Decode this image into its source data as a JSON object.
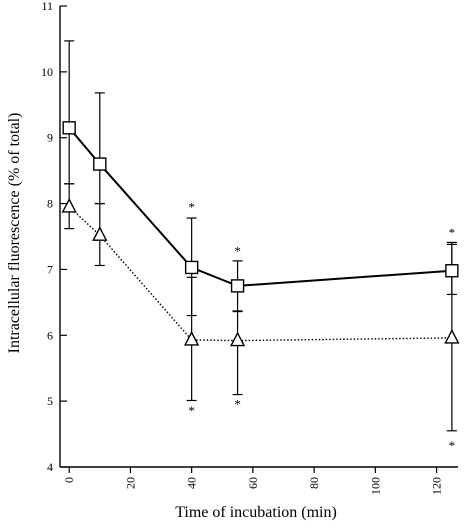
{
  "chart_data": {
    "type": "line",
    "xlabel": "Time of incubation (min)",
    "ylabel": "Intracellular fluorescence (% of total)",
    "xlim": [
      -3,
      127
    ],
    "ylim": [
      4,
      11
    ],
    "xticks": [
      0,
      20,
      40,
      60,
      80,
      100,
      120
    ],
    "yticks": [
      4,
      5,
      6,
      7,
      8,
      9,
      10,
      11
    ],
    "grid": false,
    "legend": "none",
    "series": [
      {
        "marker": "square",
        "line_style": "solid",
        "x": [
          0,
          10,
          40,
          55,
          125
        ],
        "y": [
          9.15,
          8.6,
          7.03,
          6.75,
          6.98
        ],
        "err_up": [
          1.32,
          1.08,
          0.75,
          0.38,
          0.4
        ],
        "err_down": [
          0.85,
          0.6,
          0.73,
          0.38,
          0.36
        ],
        "significant": [
          false,
          false,
          true,
          true,
          true
        ]
      },
      {
        "marker": "triangle",
        "line_style": "dotted",
        "x": [
          0,
          10,
          40,
          55,
          125
        ],
        "y": [
          7.95,
          7.52,
          5.93,
          5.92,
          5.96
        ],
        "err_up": [
          0.35,
          0.48,
          0.95,
          0.44,
          1.45
        ],
        "err_down": [
          0.33,
          0.46,
          0.92,
          0.82,
          1.41
        ],
        "significant": [
          false,
          false,
          true,
          true,
          true
        ]
      }
    ],
    "annotations": [
      {
        "text": "*",
        "x": 40,
        "y": 7.97
      },
      {
        "text": "*",
        "x": 40,
        "y": 4.88
      },
      {
        "text": "*",
        "x": 55,
        "y": 7.3
      },
      {
        "text": "*",
        "x": 55,
        "y": 4.98
      },
      {
        "text": "*",
        "x": 125,
        "y": 7.58
      },
      {
        "text": "*",
        "x": 125,
        "y": 4.35
      }
    ]
  }
}
